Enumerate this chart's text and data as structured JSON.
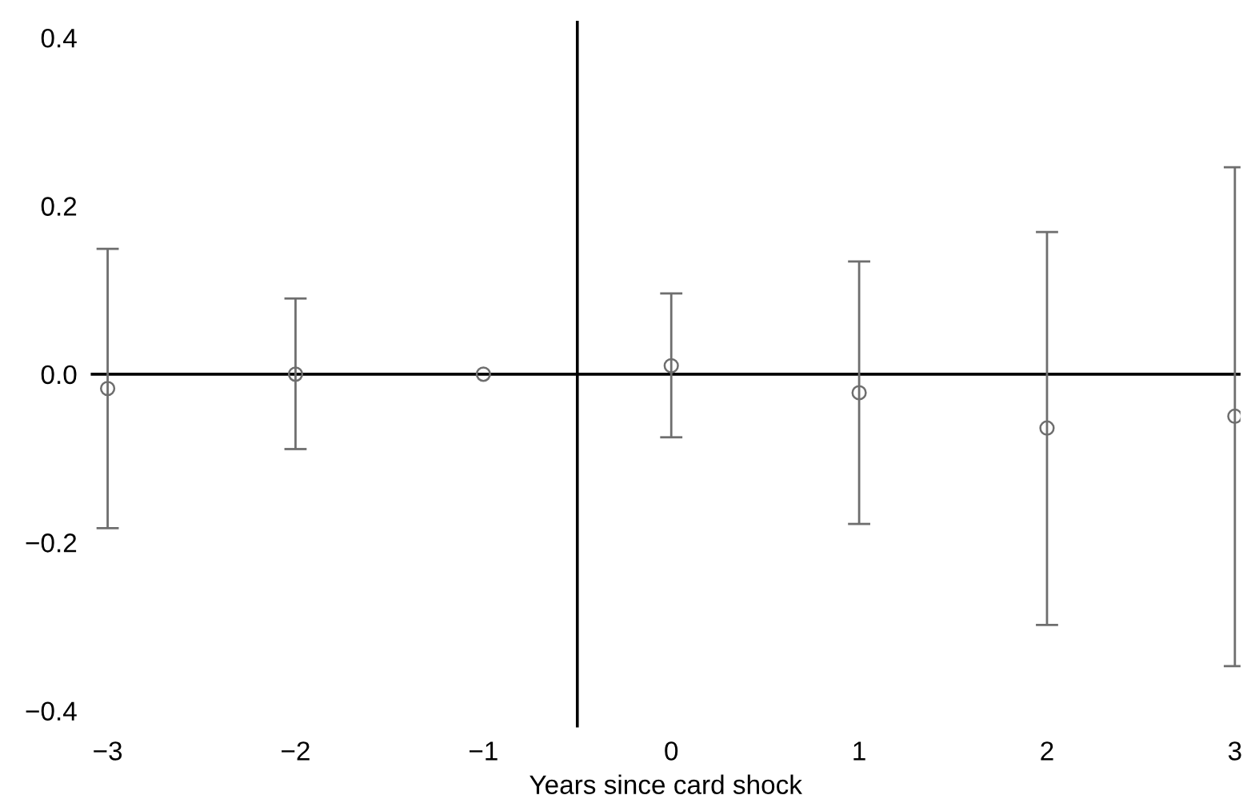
{
  "chart_data": {
    "type": "scatter",
    "xlabel": "Years since card shock",
    "x": [
      -3,
      -2,
      -1,
      0,
      1,
      2,
      3
    ],
    "series": [
      {
        "color": "#6e6e6e",
        "values": [
          -0.017,
          0.0,
          0.0,
          0.01,
          -0.022,
          -0.064,
          -0.05
        ],
        "errors": [
          [
            -0.183,
            0.149
          ],
          [
            -0.089,
            0.09
          ],
          null,
          [
            -0.075,
            0.096
          ],
          [
            -0.178,
            0.134
          ],
          [
            -0.298,
            0.169
          ],
          [
            -0.347,
            0.246
          ]
        ]
      }
    ],
    "marker": "circle",
    "xlim": [
      -3.09,
      3.03
    ],
    "ylim": [
      -0.42,
      0.42
    ],
    "xticks": [
      {
        "value": -3,
        "label": "−3"
      },
      {
        "value": -2,
        "label": "−2"
      },
      {
        "value": -1,
        "label": "−1"
      },
      0,
      1,
      2,
      3
    ],
    "yticks": [
      {
        "value": -0.4,
        "label": "−0.4"
      },
      {
        "value": -0.2,
        "label": "−0.2"
      },
      {
        "value": 0.0,
        "label": "0.0"
      },
      0.2,
      0.4
    ],
    "ref_lines": [
      {
        "axis": "y",
        "value": 0,
        "color": "#000000"
      },
      {
        "axis": "x",
        "value": -0.5,
        "color": "#000000"
      }
    ],
    "grid": false
  }
}
